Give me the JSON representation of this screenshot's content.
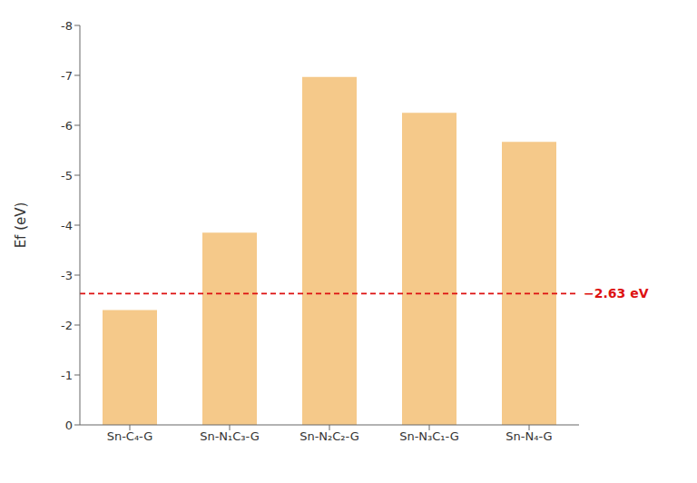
{
  "chart_data": {
    "type": "bar",
    "categories": [
      "Sn-C₄-G",
      "Sn-N₁C₃-G",
      "Sn-N₂C₂-G",
      "Sn-N₃C₁-G",
      "Sn-N₄-G"
    ],
    "values": [
      -2.3,
      -3.85,
      -6.97,
      -6.25,
      -5.67
    ],
    "color": "#F5C98A",
    "ylabel": "Ef (eV)",
    "ylim": [
      0,
      -8
    ],
    "yticks": [
      0,
      -1,
      -2,
      -3,
      -4,
      -5,
      -6,
      -7,
      -8
    ],
    "grid": false,
    "annotations": [
      {
        "type": "hline",
        "y": -2.63,
        "text": "−2.63 eV",
        "color": "#DD1111"
      }
    ]
  }
}
